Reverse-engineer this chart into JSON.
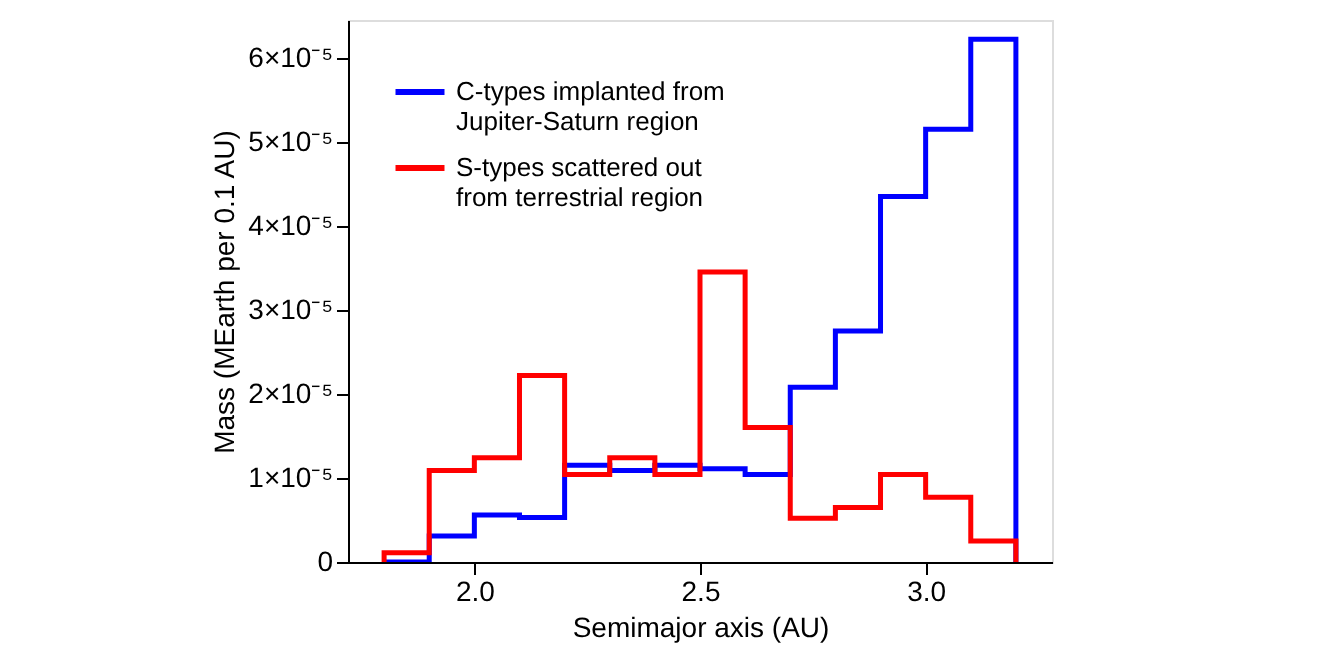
{
  "chart_data": {
    "type": "histogram",
    "xlabel": "Semimajor axis (AU)",
    "ylabel": "Mass (MEarth per 0.1 AU)",
    "bins": [
      1.8,
      1.9,
      2.0,
      2.1,
      2.2,
      2.3,
      2.4,
      2.5,
      2.6,
      2.7,
      2.8,
      2.9,
      3.0,
      3.1,
      3.2
    ],
    "series": [
      {
        "name": "C-types implanted from Jupiter-Saturn region",
        "color": "#0000ff",
        "values": [
          0,
          3.1e-06,
          5.6e-06,
          5.3e-06,
          1.15e-05,
          1.09e-05,
          1.15e-05,
          1.11e-05,
          1.04e-05,
          2.08e-05,
          2.75e-05,
          4.35e-05,
          5.15e-05,
          6.22e-05
        ]
      },
      {
        "name": "S-types scattered out from terrestrial region",
        "color": "#ff0000",
        "values": [
          1.1e-06,
          1.09e-05,
          1.24e-05,
          2.22e-05,
          1.04e-05,
          1.24e-05,
          1.04e-05,
          3.45e-05,
          1.6e-05,
          5.2e-06,
          6.5e-06,
          1.04e-05,
          7.7e-06,
          2.5e-06
        ]
      }
    ],
    "xlim": [
      1.72,
      3.28
    ],
    "xticks": [
      {
        "value": 2,
        "label": "2.0"
      },
      2.5,
      {
        "value": 3,
        "label": "3.0"
      }
    ],
    "ylim": [
      0,
      6.45e-05
    ],
    "yticks": [
      0,
      {
        "value": 1e-05,
        "label": "1×10⁻⁵"
      },
      {
        "value": 2e-05,
        "label": "2×10⁻⁵"
      },
      {
        "value": 3e-05,
        "label": "3×10⁻⁵"
      },
      {
        "value": 4e-05,
        "label": "4×10⁻⁵"
      },
      {
        "value": 5e-05,
        "label": "5×10⁻⁵"
      },
      {
        "value": 6e-05,
        "label": "6×10⁻⁵"
      }
    ],
    "legend": "top left",
    "grid": false
  }
}
